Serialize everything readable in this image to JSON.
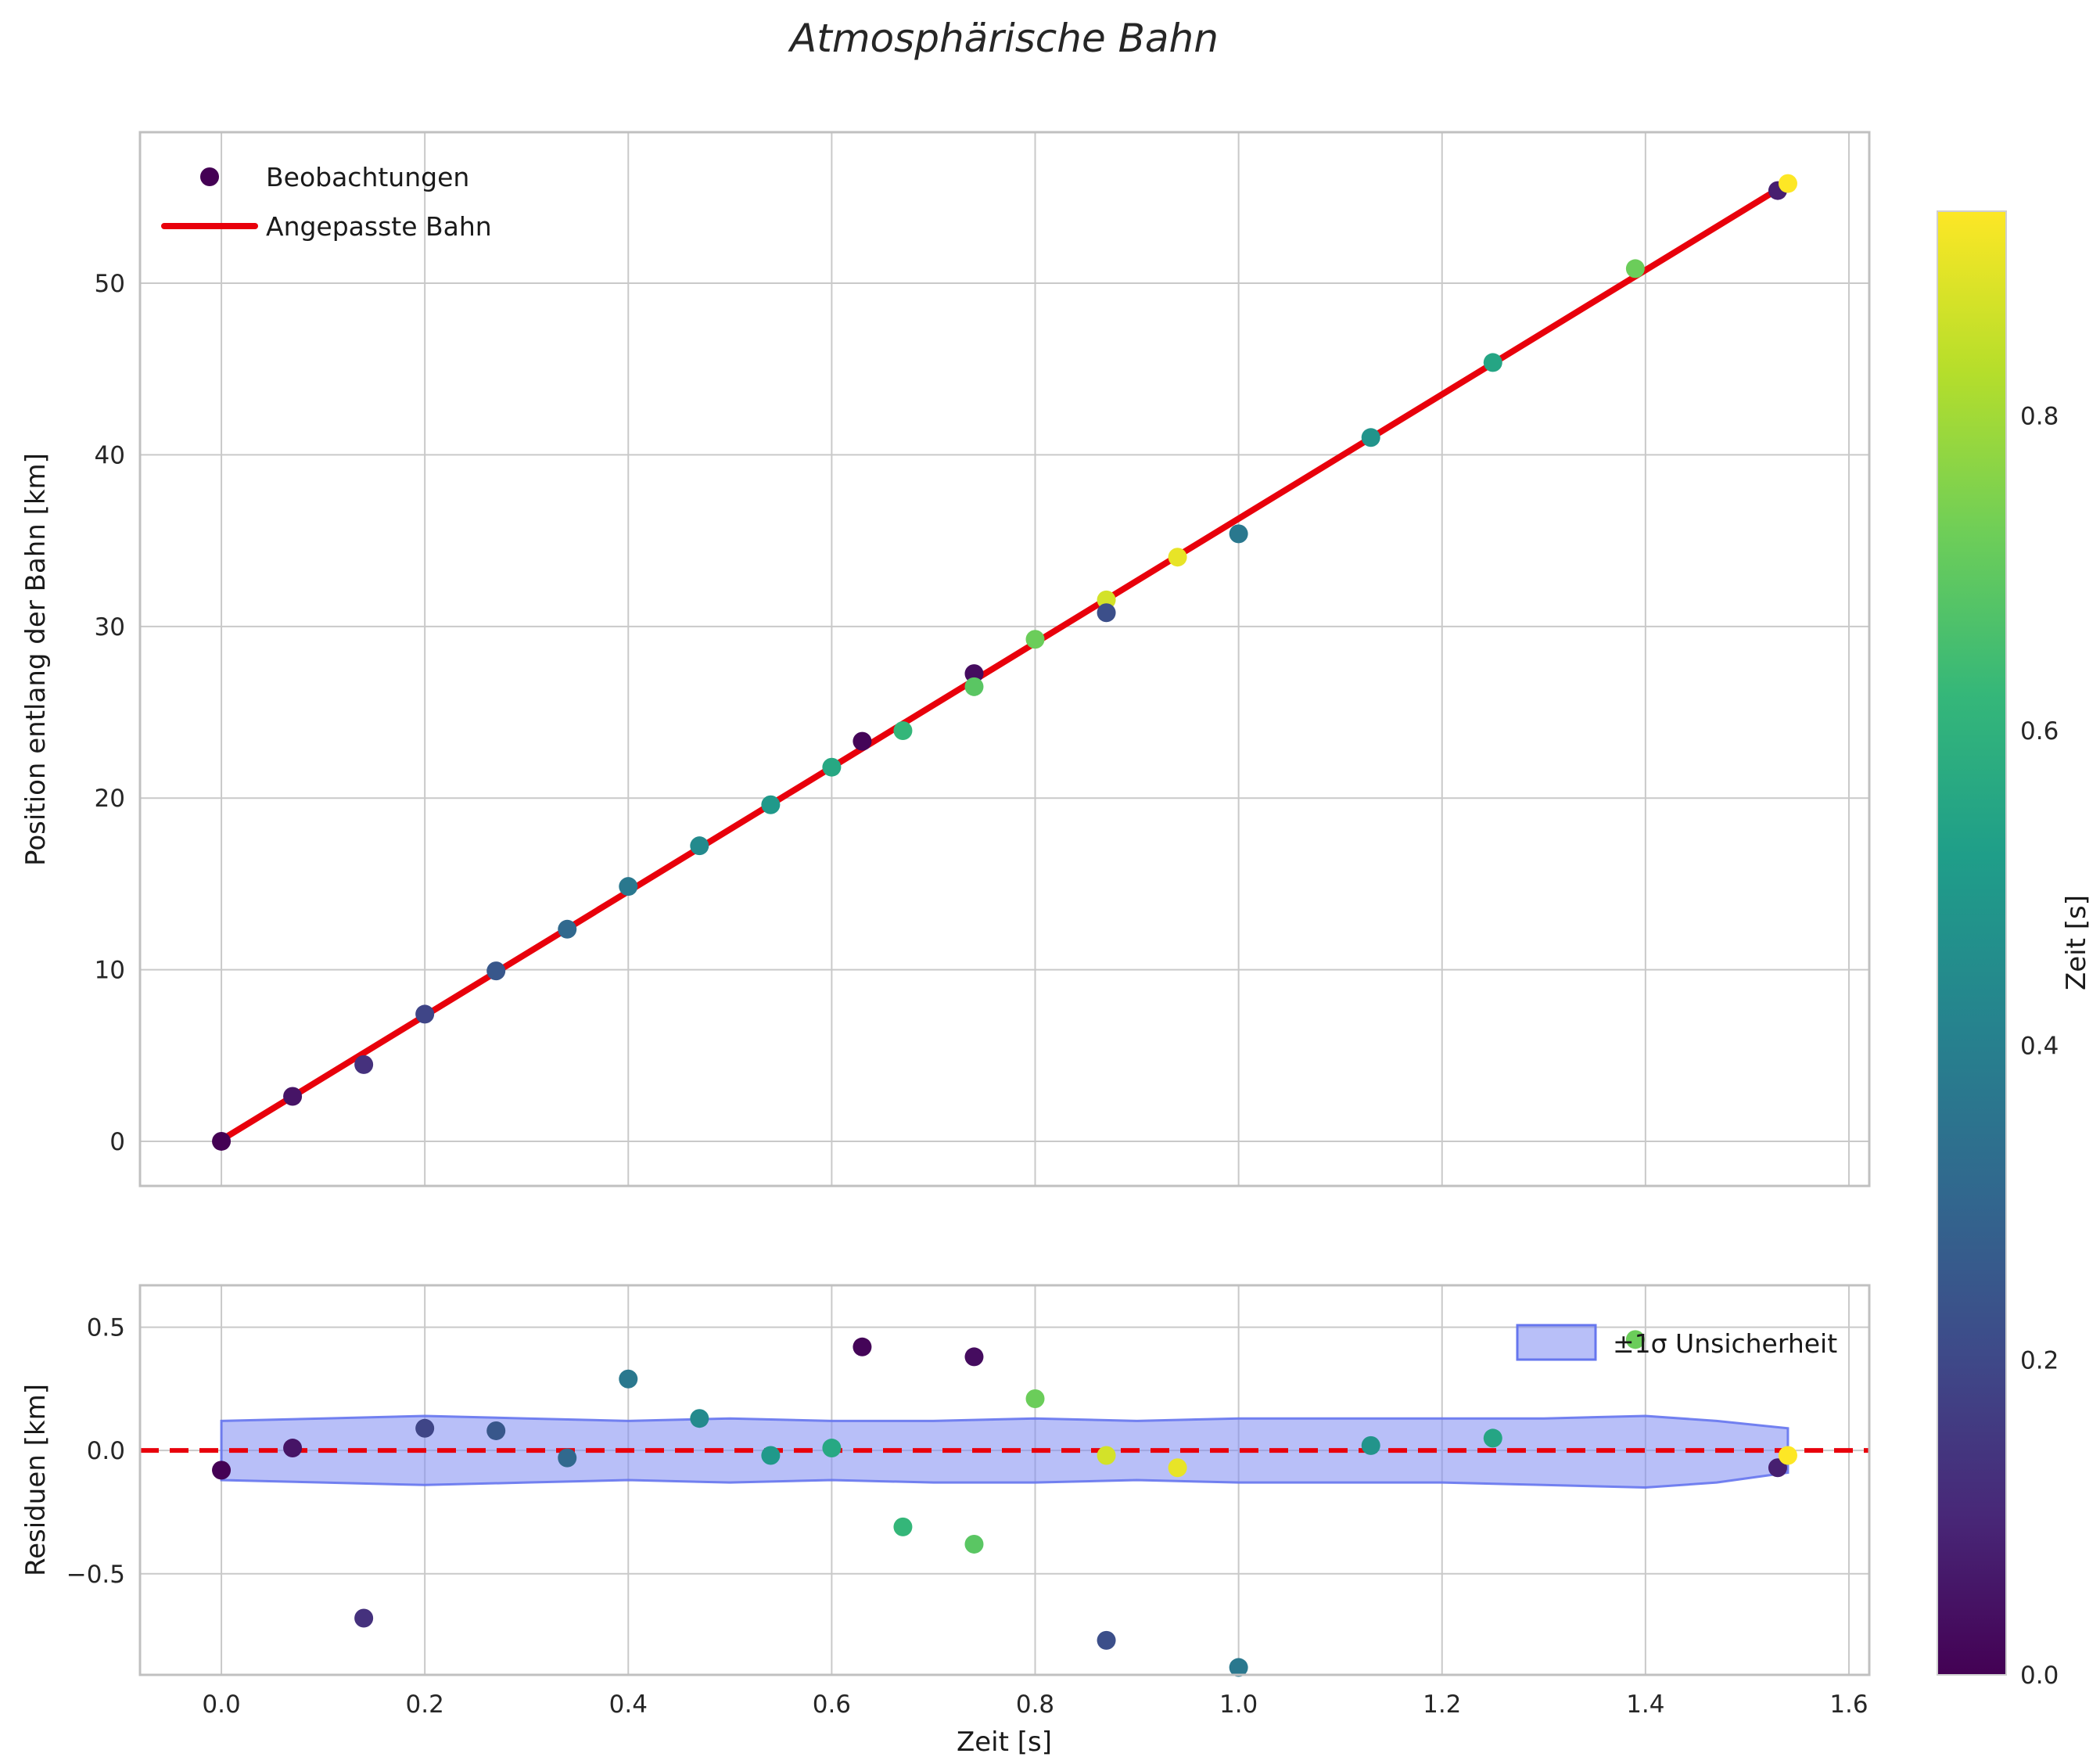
{
  "chart_data": {
    "type": "scatter",
    "title": "Atmosphärische Bahn",
    "axes": {
      "xlim": [
        -0.08,
        1.62
      ],
      "top_ylim": [
        -2.6,
        58.8
      ],
      "resid_ylim": [
        -0.91,
        0.67
      ],
      "xticks": [
        0.0,
        0.2,
        0.4,
        0.6,
        0.8,
        1.0,
        1.2,
        1.4,
        1.6
      ],
      "top_yticks": [
        0,
        10,
        20,
        30,
        40,
        50
      ],
      "resid_yticks": [
        -0.5,
        0.0,
        0.5
      ],
      "grid": true,
      "grid_color": "#c9c9c9",
      "spine_color": "#c0c0c0"
    },
    "top": {
      "ylabel": "Position entlang der Bahn [km]",
      "legend_observations": "Beobachtungen",
      "legend_fit": "Angepasste Bahn",
      "fit_line": {
        "x0": 0.0,
        "y0": 0.08,
        "x1": 1.54,
        "y1": 55.83,
        "color": "#e8000b"
      }
    },
    "residuals": {
      "ylabel": "Residuen [km]",
      "xlabel": "Zeit [s]",
      "band_label": "±1σ Unsicherheit",
      "zero_line": {
        "y": 0.0,
        "color": "#e8000b",
        "style": "dashed"
      },
      "band": {
        "fill": "#7d8bf2",
        "fill_opacity": 0.55,
        "edge": "#6676ee",
        "x": [
          0.0,
          0.1,
          0.2,
          0.3,
          0.4,
          0.5,
          0.6,
          0.7,
          0.8,
          0.9,
          1.0,
          1.1,
          1.2,
          1.3,
          1.4,
          1.47,
          1.54
        ],
        "upper": [
          0.12,
          0.13,
          0.14,
          0.13,
          0.12,
          0.13,
          0.12,
          0.12,
          0.13,
          0.12,
          0.13,
          0.13,
          0.13,
          0.13,
          0.14,
          0.12,
          0.09
        ],
        "lower": [
          -0.12,
          -0.13,
          -0.14,
          -0.13,
          -0.12,
          -0.13,
          -0.12,
          -0.13,
          -0.13,
          -0.12,
          -0.13,
          -0.13,
          -0.13,
          -0.14,
          -0.15,
          -0.13,
          -0.09
        ]
      }
    },
    "points": [
      {
        "t": 0.0,
        "y": 0.0,
        "r": -0.08,
        "c": 0.0
      },
      {
        "t": 0.07,
        "y": 2.62,
        "r": 0.01,
        "c": 0.05
      },
      {
        "t": 0.14,
        "y": 4.47,
        "r": -0.68,
        "c": 0.13
      },
      {
        "t": 0.2,
        "y": 7.41,
        "r": 0.09,
        "c": 0.19
      },
      {
        "t": 0.27,
        "y": 9.93,
        "r": 0.08,
        "c": 0.25
      },
      {
        "t": 0.34,
        "y": 12.36,
        "r": -0.03,
        "c": 0.31
      },
      {
        "t": 0.4,
        "y": 14.85,
        "r": 0.29,
        "c": 0.37
      },
      {
        "t": 0.47,
        "y": 17.22,
        "r": 0.13,
        "c": 0.44
      },
      {
        "t": 0.54,
        "y": 19.61,
        "r": -0.02,
        "c": 0.5
      },
      {
        "t": 0.6,
        "y": 21.8,
        "r": 0.01,
        "c": 0.56
      },
      {
        "t": 0.63,
        "y": 23.31,
        "r": 0.42,
        "c": 0.01
      },
      {
        "t": 0.67,
        "y": 23.93,
        "r": -0.31,
        "c": 0.62
      },
      {
        "t": 0.74,
        "y": 27.25,
        "r": 0.38,
        "c": 0.03
      },
      {
        "t": 0.74,
        "y": 26.49,
        "r": -0.38,
        "c": 0.69
      },
      {
        "t": 0.8,
        "y": 29.25,
        "r": 0.21,
        "c": 0.72
      },
      {
        "t": 0.87,
        "y": 31.55,
        "r": -0.02,
        "c": 0.87
      },
      {
        "t": 0.87,
        "y": 30.8,
        "r": -0.77,
        "c": 0.22
      },
      {
        "t": 0.94,
        "y": 34.04,
        "r": -0.07,
        "c": 0.9
      },
      {
        "t": 1.0,
        "y": 35.4,
        "r": -0.88,
        "c": 0.37
      },
      {
        "t": 1.13,
        "y": 41.01,
        "r": 0.02,
        "c": 0.48
      },
      {
        "t": 1.25,
        "y": 45.38,
        "r": 0.05,
        "c": 0.55
      },
      {
        "t": 1.39,
        "y": 50.85,
        "r": 0.45,
        "c": 0.72
      },
      {
        "t": 1.53,
        "y": 55.4,
        "r": -0.07,
        "c": 0.08
      },
      {
        "t": 1.54,
        "y": 55.81,
        "r": -0.02,
        "c": 0.93
      }
    ],
    "colorbar": {
      "label": "Zeit [s]",
      "vmin": 0.0,
      "vmax": 0.93,
      "ticks": [
        0.0,
        0.2,
        0.4,
        0.6,
        0.8
      ]
    },
    "colormap": {
      "name": "viridis",
      "stops": [
        [
          0.0,
          "#440154"
        ],
        [
          0.11,
          "#482878"
        ],
        [
          0.22,
          "#3e4a89"
        ],
        [
          0.33,
          "#31688e"
        ],
        [
          0.44,
          "#26828e"
        ],
        [
          0.56,
          "#1f9e89"
        ],
        [
          0.67,
          "#35b779"
        ],
        [
          0.78,
          "#6ece58"
        ],
        [
          0.89,
          "#b5de2b"
        ],
        [
          1.0,
          "#fde725"
        ]
      ]
    }
  }
}
